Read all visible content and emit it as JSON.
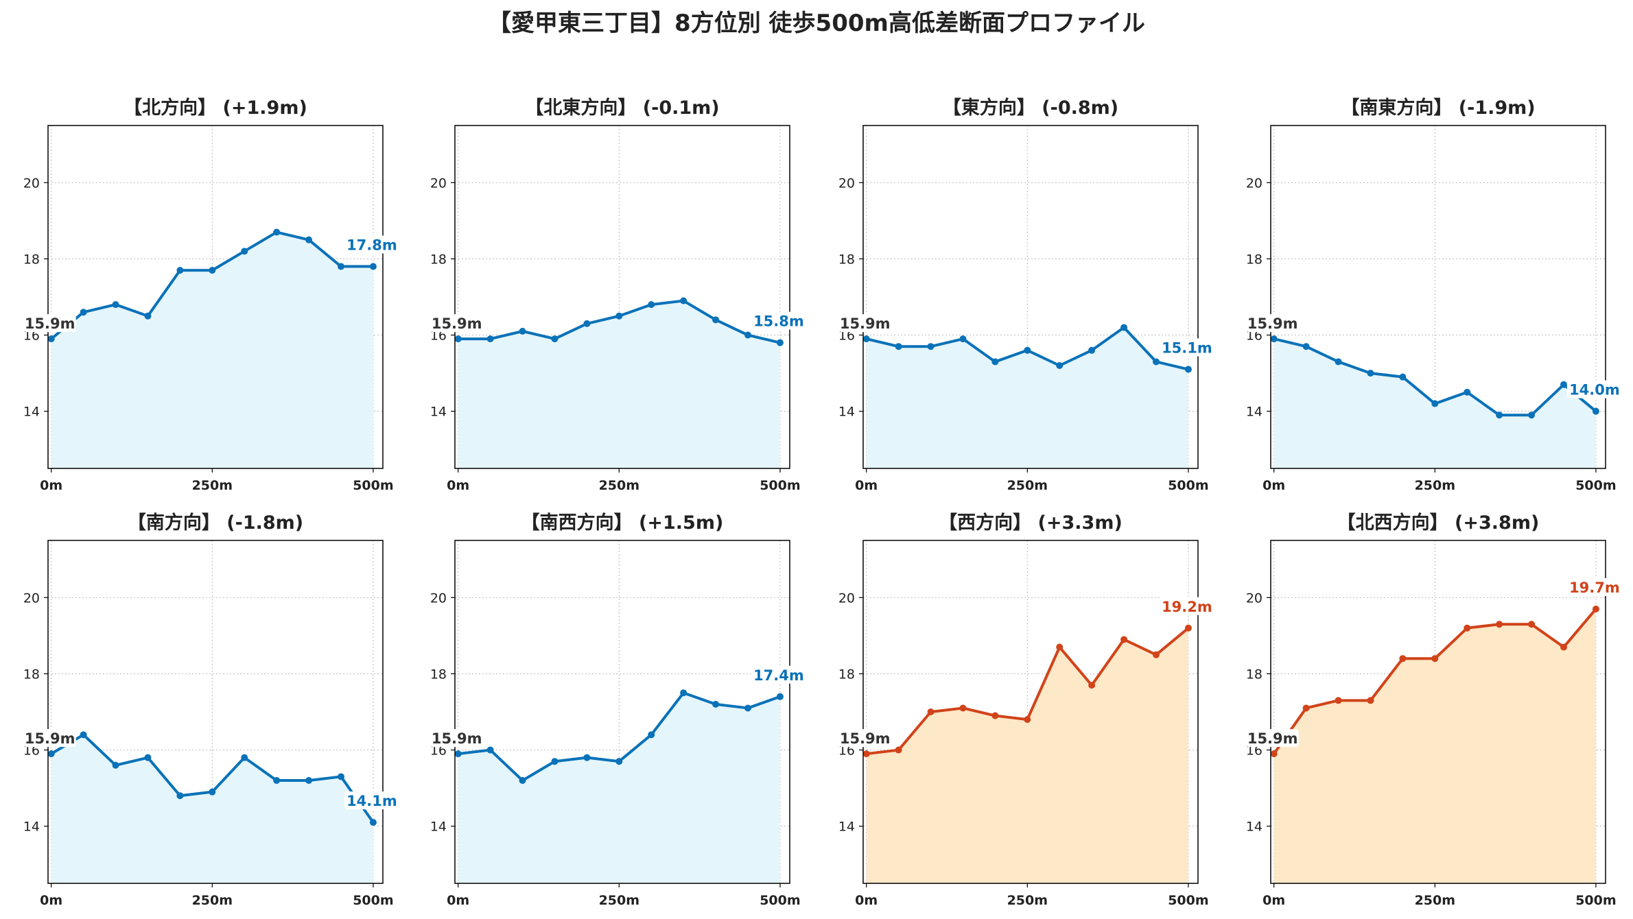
{
  "title": "【愛甲東三丁目】8方位別 徒歩500m高低差断面プロファイル",
  "colors": {
    "down_line": "#0a72b8",
    "down_fill": "#e4f5fb",
    "up_line": "#d1431a",
    "up_fill": "#fde8c8",
    "start_label": "#333333",
    "grid": "#bbbbbb"
  },
  "chart_data": [
    {
      "type": "line",
      "title": "【北方向】 (+1.9m)",
      "trend": "down",
      "x": [
        0,
        50,
        100,
        150,
        200,
        250,
        300,
        350,
        400,
        450,
        500
      ],
      "y": [
        15.9,
        16.6,
        16.8,
        16.5,
        17.7,
        17.7,
        18.2,
        18.7,
        18.5,
        17.8,
        17.8
      ],
      "start_label": "15.9m",
      "end_label": "17.8m",
      "xticks": [
        "0m",
        "250m",
        "500m"
      ],
      "xlim": [
        -5,
        515
      ],
      "ylim": [
        12.5,
        21.5
      ],
      "yticks": [
        14,
        16,
        18,
        20
      ],
      "grid": true
    },
    {
      "type": "line",
      "title": "【北東方向】 (-0.1m)",
      "trend": "down",
      "x": [
        0,
        50,
        100,
        150,
        200,
        250,
        300,
        350,
        400,
        450,
        500
      ],
      "y": [
        15.9,
        15.9,
        16.1,
        15.9,
        16.3,
        16.5,
        16.8,
        16.9,
        16.4,
        16.0,
        15.8
      ],
      "start_label": "15.9m",
      "end_label": "15.8m",
      "xticks": [
        "0m",
        "250m",
        "500m"
      ],
      "xlim": [
        -5,
        515
      ],
      "ylim": [
        12.5,
        21.5
      ],
      "yticks": [
        14,
        16,
        18,
        20
      ],
      "grid": true
    },
    {
      "type": "line",
      "title": "【東方向】 (-0.8m)",
      "trend": "down",
      "x": [
        0,
        50,
        100,
        150,
        200,
        250,
        300,
        350,
        400,
        450,
        500
      ],
      "y": [
        15.9,
        15.7,
        15.7,
        15.9,
        15.3,
        15.6,
        15.2,
        15.6,
        16.2,
        15.3,
        15.1
      ],
      "start_label": "15.9m",
      "end_label": "15.1m",
      "xticks": [
        "0m",
        "250m",
        "500m"
      ],
      "xlim": [
        -5,
        515
      ],
      "ylim": [
        12.5,
        21.5
      ],
      "yticks": [
        14,
        16,
        18,
        20
      ],
      "grid": true
    },
    {
      "type": "line",
      "title": "【南東方向】 (-1.9m)",
      "trend": "down",
      "x": [
        0,
        50,
        100,
        150,
        200,
        250,
        300,
        350,
        400,
        450,
        500
      ],
      "y": [
        15.9,
        15.7,
        15.3,
        15.0,
        14.9,
        14.2,
        14.5,
        13.9,
        13.9,
        14.7,
        14.0
      ],
      "start_label": "15.9m",
      "end_label": "14.0m",
      "xticks": [
        "0m",
        "250m",
        "500m"
      ],
      "xlim": [
        -5,
        515
      ],
      "ylim": [
        12.5,
        21.5
      ],
      "yticks": [
        14,
        16,
        18,
        20
      ],
      "grid": true
    },
    {
      "type": "line",
      "title": "【南方向】 (-1.8m)",
      "trend": "down",
      "x": [
        0,
        50,
        100,
        150,
        200,
        250,
        300,
        350,
        400,
        450,
        500
      ],
      "y": [
        15.9,
        16.4,
        15.6,
        15.8,
        14.8,
        14.9,
        15.8,
        15.2,
        15.2,
        15.3,
        14.1
      ],
      "start_label": "15.9m",
      "end_label": "14.1m",
      "xticks": [
        "0m",
        "250m",
        "500m"
      ],
      "xlim": [
        -5,
        515
      ],
      "ylim": [
        12.5,
        21.5
      ],
      "yticks": [
        14,
        16,
        18,
        20
      ],
      "grid": true
    },
    {
      "type": "line",
      "title": "【南西方向】 (+1.5m)",
      "trend": "down",
      "x": [
        0,
        50,
        100,
        150,
        200,
        250,
        300,
        350,
        400,
        450,
        500
      ],
      "y": [
        15.9,
        16.0,
        15.2,
        15.7,
        15.8,
        15.7,
        16.4,
        17.5,
        17.2,
        17.1,
        17.4
      ],
      "start_label": "15.9m",
      "end_label": "17.4m",
      "xticks": [
        "0m",
        "250m",
        "500m"
      ],
      "xlim": [
        -5,
        515
      ],
      "ylim": [
        12.5,
        21.5
      ],
      "yticks": [
        14,
        16,
        18,
        20
      ],
      "grid": true
    },
    {
      "type": "line",
      "title": "【西方向】 (+3.3m)",
      "trend": "up",
      "x": [
        0,
        50,
        100,
        150,
        200,
        250,
        300,
        350,
        400,
        450,
        500
      ],
      "y": [
        15.9,
        16.0,
        17.0,
        17.1,
        16.9,
        16.8,
        18.7,
        17.7,
        18.9,
        18.5,
        19.2
      ],
      "start_label": "15.9m",
      "end_label": "19.2m",
      "xticks": [
        "0m",
        "250m",
        "500m"
      ],
      "xlim": [
        -5,
        515
      ],
      "ylim": [
        12.5,
        21.5
      ],
      "yticks": [
        14,
        16,
        18,
        20
      ],
      "grid": true
    },
    {
      "type": "line",
      "title": "【北西方向】 (+3.8m)",
      "trend": "up",
      "x": [
        0,
        50,
        100,
        150,
        200,
        250,
        300,
        350,
        400,
        450,
        500
      ],
      "y": [
        15.9,
        17.1,
        17.3,
        17.3,
        18.4,
        18.4,
        19.2,
        19.3,
        19.3,
        18.7,
        19.7
      ],
      "start_label": "15.9m",
      "end_label": "19.7m",
      "xticks": [
        "0m",
        "250m",
        "500m"
      ],
      "xlim": [
        -5,
        515
      ],
      "ylim": [
        12.5,
        21.5
      ],
      "yticks": [
        14,
        16,
        18,
        20
      ],
      "grid": true
    }
  ]
}
